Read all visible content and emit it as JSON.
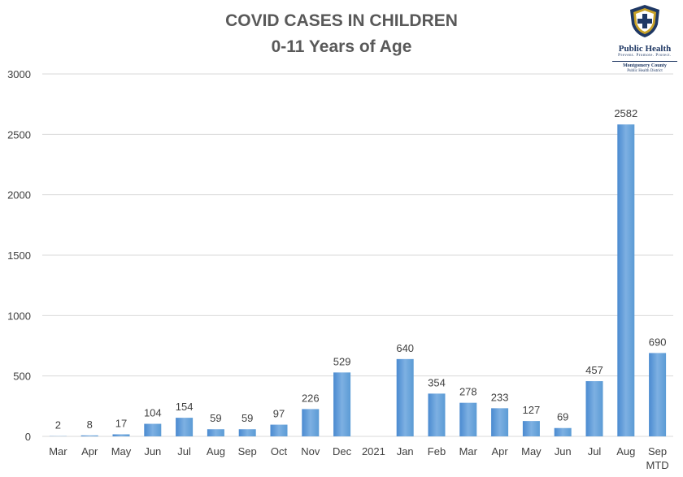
{
  "title_line1": "COVID CASES IN CHILDREN",
  "title_line2": "0-11 Years of Age",
  "logo": {
    "name": "Public Health",
    "tagline": "Prevent. Promote. Protect.",
    "county": "Montgomery County",
    "district": "Public Health District"
  },
  "colors": {
    "bar": "#5b9bd5",
    "bar_dark": "#4a8ad0",
    "title": "#595959",
    "grid": "#d9d9d9",
    "logo_navy": "#1f3864",
    "logo_gold": "#c9a227"
  },
  "chart_data": {
    "type": "bar",
    "title": "COVID CASES IN CHILDREN 0-11 Years of Age",
    "xlabel": "",
    "ylabel": "",
    "ylim": [
      0,
      3000
    ],
    "yticks": [
      0,
      500,
      1000,
      1500,
      2000,
      2500,
      3000
    ],
    "grid": true,
    "categories": [
      "Mar",
      "Apr",
      "May",
      "Jun",
      "Jul",
      "Aug",
      "Sep",
      "Oct",
      "Nov",
      "Dec",
      "2021",
      "Jan",
      "Feb",
      "Mar",
      "Apr",
      "May",
      "Jun",
      "Jul",
      "Aug",
      "Sep MTD"
    ],
    "category_lines": [
      [
        "Mar"
      ],
      [
        "Apr"
      ],
      [
        "May"
      ],
      [
        "Jun"
      ],
      [
        "Jul"
      ],
      [
        "Aug"
      ],
      [
        "Sep"
      ],
      [
        "Oct"
      ],
      [
        "Nov"
      ],
      [
        "Dec"
      ],
      [
        "2021"
      ],
      [
        "Jan"
      ],
      [
        "Feb"
      ],
      [
        "Mar"
      ],
      [
        "Apr"
      ],
      [
        "May"
      ],
      [
        "Jun"
      ],
      [
        "Jul"
      ],
      [
        "Aug"
      ],
      [
        "Sep",
        "MTD"
      ]
    ],
    "values": [
      2,
      8,
      17,
      104,
      154,
      59,
      59,
      97,
      226,
      529,
      null,
      640,
      354,
      278,
      233,
      127,
      69,
      457,
      2582,
      690
    ]
  }
}
